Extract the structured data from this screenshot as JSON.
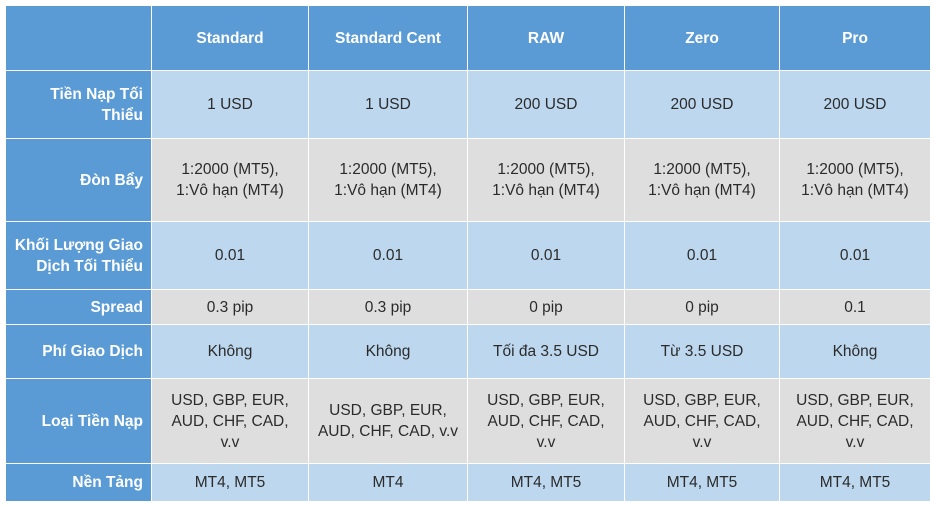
{
  "columns": [
    "",
    "Standard",
    "Standard Cent",
    "RAW",
    "Zero",
    "Pro"
  ],
  "rows": [
    {
      "label": [
        "Tiền Nạp Tối",
        "Thiểu"
      ],
      "cells": [
        [
          "1 USD"
        ],
        [
          "1 USD"
        ],
        [
          "200 USD"
        ],
        [
          "200 USD"
        ],
        [
          "200 USD"
        ]
      ]
    },
    {
      "label": [
        "Đòn Bẩy"
      ],
      "cells": [
        [
          "1:2000 (MT5),",
          "1:Vô hạn (MT4)"
        ],
        [
          "1:2000 (MT5),",
          "1:Vô hạn (MT4)"
        ],
        [
          "1:2000 (MT5),",
          "1:Vô hạn (MT4)"
        ],
        [
          "1:2000 (MT5),",
          "1:Vô hạn (MT4)"
        ],
        [
          "1:2000 (MT5),",
          "1:Vô hạn (MT4)"
        ]
      ]
    },
    {
      "label": [
        "Khối Lượng Giao",
        "Dịch Tối Thiểu"
      ],
      "cells": [
        [
          "0.01"
        ],
        [
          "0.01"
        ],
        [
          "0.01"
        ],
        [
          "0.01"
        ],
        [
          "0.01"
        ]
      ]
    },
    {
      "label": [
        "Spread"
      ],
      "cells": [
        [
          "0.3 pip"
        ],
        [
          "0.3 pip"
        ],
        [
          "0 pip"
        ],
        [
          "0 pip"
        ],
        [
          "0.1"
        ]
      ]
    },
    {
      "label": [
        "Phí Giao Dịch"
      ],
      "cells": [
        [
          "Không"
        ],
        [
          "Không"
        ],
        [
          "Tối đa 3.5 USD"
        ],
        [
          "Từ 3.5 USD"
        ],
        [
          "Không"
        ]
      ]
    },
    {
      "label": [
        "Loại Tiền Nạp"
      ],
      "cells": [
        [
          "USD, GBP, EUR,",
          "AUD, CHF, CAD, v.v"
        ],
        [
          "USD, GBP, EUR,",
          "AUD, CHF, CAD, v.v"
        ],
        [
          "USD, GBP, EUR,",
          "AUD, CHF, CAD, v.v"
        ],
        [
          "USD, GBP, EUR,",
          "AUD, CHF, CAD, v.v"
        ],
        [
          "USD, GBP, EUR,",
          "AUD, CHF, CAD, v.v"
        ]
      ]
    },
    {
      "label": [
        "Nền Tảng"
      ],
      "cells": [
        [
          "MT4, MT5"
        ],
        [
          "MT4"
        ],
        [
          "MT4, MT5"
        ],
        [
          "MT4, MT5"
        ],
        [
          "MT4, MT5"
        ]
      ]
    }
  ],
  "colors": {
    "header_bg": "#5b9bd5",
    "row_blue": "#bdd7ee",
    "row_grey": "#dedede"
  }
}
